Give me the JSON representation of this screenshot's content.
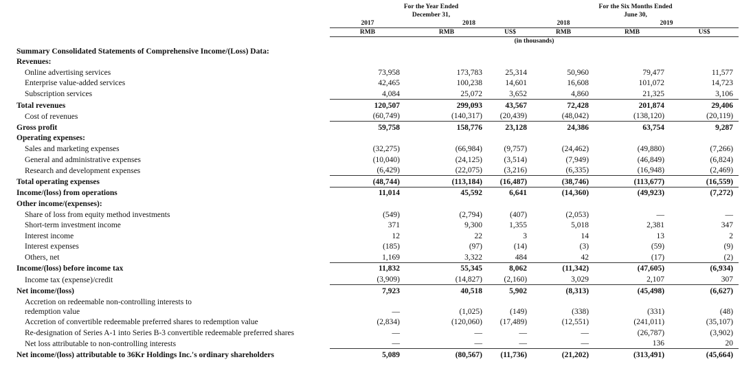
{
  "header": {
    "groups": [
      [
        "For the Year Ended",
        "December 31,"
      ],
      [
        "For the Six Months Ended",
        "June 30,"
      ]
    ],
    "years": [
      "2017",
      "2018",
      "2018",
      "2019"
    ],
    "currencies": [
      "RMB",
      "RMB",
      "US$",
      "RMB",
      "RMB",
      "US$"
    ],
    "unit": "(in thousands)"
  },
  "table": {
    "rows": [
      {
        "label": "Summary Consolidated Statements of Comprehensive Income/(Loss) Data:",
        "bold": true,
        "heading": true
      },
      {
        "label": "Revenues:",
        "bold": true,
        "heading": true
      },
      {
        "label": "Online advertising services",
        "values": [
          "73,958",
          "173,783",
          "25,314",
          "50,960",
          "79,477",
          "11,577"
        ]
      },
      {
        "label": "Enterprise value-added services",
        "values": [
          "42,465",
          "100,238",
          "14,601",
          "16,608",
          "101,072",
          "14,723"
        ]
      },
      {
        "label": "Subscription services",
        "values": [
          "4,084",
          "25,072",
          "3,652",
          "4,860",
          "21,325",
          "3,106"
        ]
      },
      {
        "label": "Total revenues",
        "bold": true,
        "values": [
          "120,507",
          "299,093",
          "43,567",
          "72,428",
          "201,874",
          "29,406"
        ]
      },
      {
        "label": "Cost of revenues",
        "values": [
          "(60,749)",
          "(140,317)",
          "(20,439)",
          "(48,042)",
          "(138,120)",
          "(20,119)"
        ]
      },
      {
        "label": "Gross profit",
        "bold": true,
        "values": [
          "59,758",
          "158,776",
          "23,128",
          "24,386",
          "63,754",
          "9,287"
        ]
      },
      {
        "label": "Operating expenses:",
        "bold": true,
        "heading": true
      },
      {
        "label": "Sales and marketing expenses",
        "values": [
          "(32,275)",
          "(66,984)",
          "(9,757)",
          "(24,462)",
          "(49,880)",
          "(7,266)"
        ]
      },
      {
        "label": "General and administrative expenses",
        "values": [
          "(10,040)",
          "(24,125)",
          "(3,514)",
          "(7,949)",
          "(46,849)",
          "(6,824)"
        ]
      },
      {
        "label": "Research and development expenses",
        "values": [
          "(6,429)",
          "(22,075)",
          "(3,216)",
          "(6,335)",
          "(16,948)",
          "(2,469)"
        ]
      },
      {
        "label": "Total operating expenses",
        "bold": true,
        "values": [
          "(48,744)",
          "(113,184)",
          "(16,487)",
          "(38,746)",
          "(113,677)",
          "(16,559)"
        ]
      },
      {
        "label": "Income/(loss) from operations",
        "bold": true,
        "values": [
          "11,014",
          "45,592",
          "6,641",
          "(14,360)",
          "(49,923)",
          "(7,272)"
        ]
      },
      {
        "label": "Other income/(expenses):",
        "bold": true,
        "heading": true
      },
      {
        "label": "Share of loss from equity method investments",
        "values": [
          "(549)",
          "(2,794)",
          "(407)",
          "(2,053)",
          "—",
          "—"
        ]
      },
      {
        "label": "Short-term investment income",
        "values": [
          "371",
          "9,300",
          "1,355",
          "5,018",
          "2,381",
          "347"
        ]
      },
      {
        "label": "Interest income",
        "values": [
          "12",
          "22",
          "3",
          "14",
          "13",
          "2"
        ]
      },
      {
        "label": "Interest expenses",
        "values": [
          "(185)",
          "(97)",
          "(14)",
          "(3)",
          "(59)",
          "(9)"
        ]
      },
      {
        "label": "Others, net",
        "values": [
          "1,169",
          "3,322",
          "484",
          "42",
          "(17)",
          "(2)"
        ]
      },
      {
        "label": "Income/(loss) before income tax",
        "bold": true,
        "values": [
          "11,832",
          "55,345",
          "8,062",
          "(11,342)",
          "(47,605)",
          "(6,934)"
        ]
      },
      {
        "label": "Income tax (expense)/credit",
        "values": [
          "(3,909)",
          "(14,827)",
          "(2,160)",
          "3,029",
          "2,107",
          "307"
        ]
      },
      {
        "label": "Net income/(loss)",
        "bold": true,
        "values": [
          "7,923",
          "40,518",
          "5,902",
          "(8,313)",
          "(45,498)",
          "(6,627)"
        ]
      },
      {
        "label": "Accretion on redeemable non-controlling interests to redemption value",
        "wrap": true,
        "values": [
          "—",
          "(1,025)",
          "(149)",
          "(338)",
          "(331)",
          "(48)"
        ]
      },
      {
        "label": "Accretion of convertible redeemable preferred shares to redemption value",
        "values": [
          "(2,834)",
          "(120,060)",
          "(17,489)",
          "(12,551)",
          "(241,011)",
          "(35,107)"
        ]
      },
      {
        "label": "Re-designation of Series A-1 into Series B-3 convertible redeemable preferred shares",
        "values": [
          "—",
          "—",
          "—",
          "—",
          "(26,787)",
          "(3,902)"
        ]
      },
      {
        "label": "Net loss attributable to non-controlling interests",
        "values": [
          "—",
          "—",
          "—",
          "—",
          "136",
          "20"
        ]
      },
      {
        "label": "Net income/(loss) attributable to 36Kr Holdings Inc.'s ordinary shareholders",
        "bold": true,
        "values": [
          "5,089",
          "(80,567)",
          "(11,736)",
          "(21,202)",
          "(313,491)",
          "(45,664)"
        ]
      }
    ]
  }
}
